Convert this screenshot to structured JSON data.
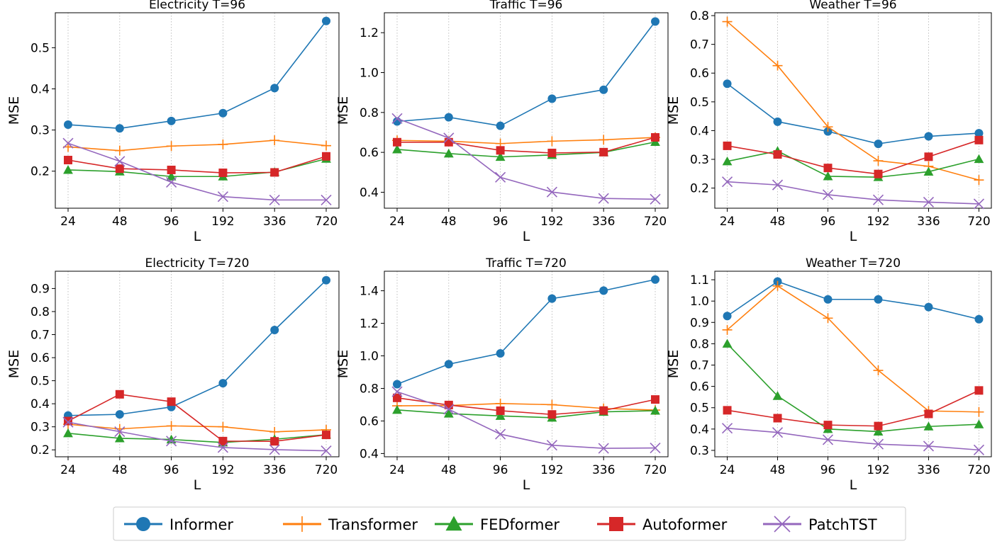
{
  "legend": {
    "entries": [
      {
        "name": "Informer",
        "color": "#1f77b4",
        "marker": "circle"
      },
      {
        "name": "Transformer",
        "color": "#ff7f0e",
        "marker": "plus"
      },
      {
        "name": "FEDformer",
        "color": "#2ca02c",
        "marker": "triangle"
      },
      {
        "name": "Autoformer",
        "color": "#d62728",
        "marker": "square"
      },
      {
        "name": "PatchTST",
        "color": "#9467bd",
        "marker": "x"
      }
    ]
  },
  "chart_data": [
    {
      "type": "line",
      "title": "Electricity T=96",
      "xlabel": "L",
      "ylabel": "MSE",
      "categories": [
        "24",
        "48",
        "96",
        "192",
        "336",
        "720"
      ],
      "ylim": [
        0.11,
        0.585
      ],
      "yticks": [
        0.2,
        0.3,
        0.4,
        0.5
      ],
      "series": [
        {
          "name": "Informer",
          "values": [
            0.313,
            0.304,
            0.322,
            0.341,
            0.402,
            0.565
          ]
        },
        {
          "name": "Transformer",
          "values": [
            0.259,
            0.25,
            0.261,
            0.265,
            0.275,
            0.262
          ]
        },
        {
          "name": "FEDformer",
          "values": [
            0.203,
            0.199,
            0.187,
            0.187,
            0.198,
            0.23
          ]
        },
        {
          "name": "Autoformer",
          "values": [
            0.227,
            0.206,
            0.203,
            0.196,
            0.197,
            0.236
          ]
        },
        {
          "name": "PatchTST",
          "values": [
            0.268,
            0.224,
            0.173,
            0.138,
            0.13,
            0.13
          ]
        }
      ]
    },
    {
      "type": "line",
      "title": "Traffic T=96",
      "xlabel": "L",
      "ylabel": "MSE",
      "categories": [
        "24",
        "48",
        "96",
        "192",
        "336",
        "720"
      ],
      "ylim": [
        0.32,
        1.3
      ],
      "yticks": [
        0.4,
        0.6,
        0.8,
        1.0,
        1.2
      ],
      "series": [
        {
          "name": "Informer",
          "values": [
            0.755,
            0.776,
            0.733,
            0.869,
            0.914,
            1.256
          ]
        },
        {
          "name": "Transformer",
          "values": [
            0.66,
            0.656,
            0.644,
            0.656,
            0.663,
            0.675
          ]
        },
        {
          "name": "FEDformer",
          "values": [
            0.615,
            0.594,
            0.577,
            0.587,
            0.6,
            0.652
          ]
        },
        {
          "name": "Autoformer",
          "values": [
            0.651,
            0.651,
            0.61,
            0.597,
            0.601,
            0.675
          ]
        },
        {
          "name": "PatchTST",
          "values": [
            0.77,
            0.672,
            0.475,
            0.401,
            0.369,
            0.365
          ]
        }
      ]
    },
    {
      "type": "line",
      "title": "Weather T=96",
      "xlabel": "L",
      "ylabel": "MSE",
      "categories": [
        "24",
        "48",
        "96",
        "192",
        "336",
        "720"
      ],
      "ylim": [
        0.13,
        0.81
      ],
      "yticks": [
        0.2,
        0.3,
        0.4,
        0.5,
        0.6,
        0.7,
        0.8
      ],
      "series": [
        {
          "name": "Informer",
          "values": [
            0.563,
            0.431,
            0.397,
            0.354,
            0.38,
            0.391
          ]
        },
        {
          "name": "Transformer",
          "values": [
            0.779,
            0.626,
            0.413,
            0.295,
            0.276,
            0.228
          ]
        },
        {
          "name": "FEDformer",
          "values": [
            0.293,
            0.329,
            0.241,
            0.238,
            0.257,
            0.301
          ]
        },
        {
          "name": "Autoformer",
          "values": [
            0.347,
            0.317,
            0.27,
            0.249,
            0.309,
            0.367
          ]
        },
        {
          "name": "PatchTST",
          "values": [
            0.222,
            0.211,
            0.177,
            0.159,
            0.151,
            0.145
          ]
        }
      ]
    },
    {
      "type": "line",
      "title": "Electricity T=720",
      "xlabel": "L",
      "ylabel": "MSE",
      "categories": [
        "24",
        "48",
        "96",
        "192",
        "336",
        "720"
      ],
      "ylim": [
        0.17,
        0.975
      ],
      "yticks": [
        0.2,
        0.3,
        0.4,
        0.5,
        0.6,
        0.7,
        0.8,
        0.9
      ],
      "series": [
        {
          "name": "Informer",
          "values": [
            0.349,
            0.354,
            0.386,
            0.489,
            0.72,
            0.936
          ]
        },
        {
          "name": "Transformer",
          "values": [
            0.311,
            0.291,
            0.304,
            0.3,
            0.278,
            0.287
          ]
        },
        {
          "name": "FEDformer",
          "values": [
            0.272,
            0.25,
            0.245,
            0.232,
            0.246,
            0.266
          ]
        },
        {
          "name": "Autoformer",
          "values": [
            0.325,
            0.441,
            0.409,
            0.238,
            0.237,
            0.265
          ]
        },
        {
          "name": "PatchTST",
          "values": [
            0.32,
            0.279,
            0.238,
            0.21,
            0.201,
            0.196
          ]
        }
      ]
    },
    {
      "type": "line",
      "title": "Traffic T=720",
      "xlabel": "L",
      "ylabel": "MSE",
      "categories": [
        "24",
        "48",
        "96",
        "192",
        "336",
        "720"
      ],
      "ylim": [
        0.38,
        1.52
      ],
      "yticks": [
        0.4,
        0.6,
        0.8,
        1.0,
        1.2,
        1.4
      ],
      "series": [
        {
          "name": "Informer",
          "values": [
            0.826,
            0.949,
            1.015,
            1.352,
            1.401,
            1.469
          ]
        },
        {
          "name": "Transformer",
          "values": [
            0.693,
            0.695,
            0.707,
            0.7,
            0.677,
            0.667
          ]
        },
        {
          "name": "FEDformer",
          "values": [
            0.668,
            0.645,
            0.631,
            0.62,
            0.656,
            0.663
          ]
        },
        {
          "name": "Autoformer",
          "values": [
            0.742,
            0.698,
            0.663,
            0.64,
            0.664,
            0.732
          ]
        },
        {
          "name": "PatchTST",
          "values": [
            0.78,
            0.672,
            0.519,
            0.451,
            0.432,
            0.434
          ]
        }
      ]
    },
    {
      "type": "line",
      "title": "Weather T=720",
      "xlabel": "L",
      "ylabel": "MSE",
      "categories": [
        "24",
        "48",
        "96",
        "192",
        "336",
        "720"
      ],
      "ylim": [
        0.27,
        1.14
      ],
      "yticks": [
        0.3,
        0.4,
        0.5,
        0.6,
        0.7,
        0.8,
        0.9,
        1.0,
        1.1
      ],
      "series": [
        {
          "name": "Informer",
          "values": [
            0.93,
            1.092,
            1.008,
            1.008,
            0.972,
            0.915
          ]
        },
        {
          "name": "Transformer",
          "values": [
            0.865,
            1.071,
            0.92,
            0.675,
            0.485,
            0.48
          ]
        },
        {
          "name": "FEDformer",
          "values": [
            0.8,
            0.555,
            0.4,
            0.388,
            0.412,
            0.422
          ]
        },
        {
          "name": "Autoformer",
          "values": [
            0.488,
            0.451,
            0.419,
            0.414,
            0.471,
            0.581
          ]
        },
        {
          "name": "PatchTST",
          "values": [
            0.404,
            0.384,
            0.35,
            0.329,
            0.32,
            0.302
          ]
        }
      ]
    }
  ]
}
